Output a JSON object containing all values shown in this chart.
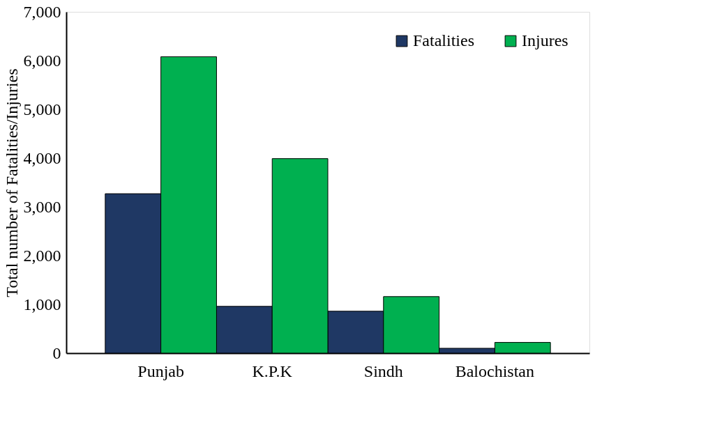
{
  "chart_data": {
    "type": "bar",
    "ylabel": "Total number of Fatalities/Injuries",
    "categories": [
      "Punjab",
      "K.P.K",
      "Sindh",
      "Balochistan"
    ],
    "series": [
      {
        "name": "Fatalities",
        "color": "#1f3864",
        "values": [
          3270,
          960,
          860,
          100
        ]
      },
      {
        "name": "Injures",
        "color": "#00b050",
        "values": [
          6080,
          3990,
          1160,
          220
        ]
      }
    ],
    "ylim": [
      0,
      7000
    ],
    "yticks": [
      {
        "value": 0,
        "label": "0"
      },
      {
        "value": 1000,
        "label": "1,000"
      },
      {
        "value": 2000,
        "label": "2,000"
      },
      {
        "value": 3000,
        "label": "3,000"
      },
      {
        "value": 4000,
        "label": "4,000"
      },
      {
        "value": 5000,
        "label": "5,000"
      },
      {
        "value": 6000,
        "label": "6,000"
      },
      {
        "value": 7000,
        "label": "7,000"
      }
    ],
    "grid": false,
    "legend": "top right"
  }
}
